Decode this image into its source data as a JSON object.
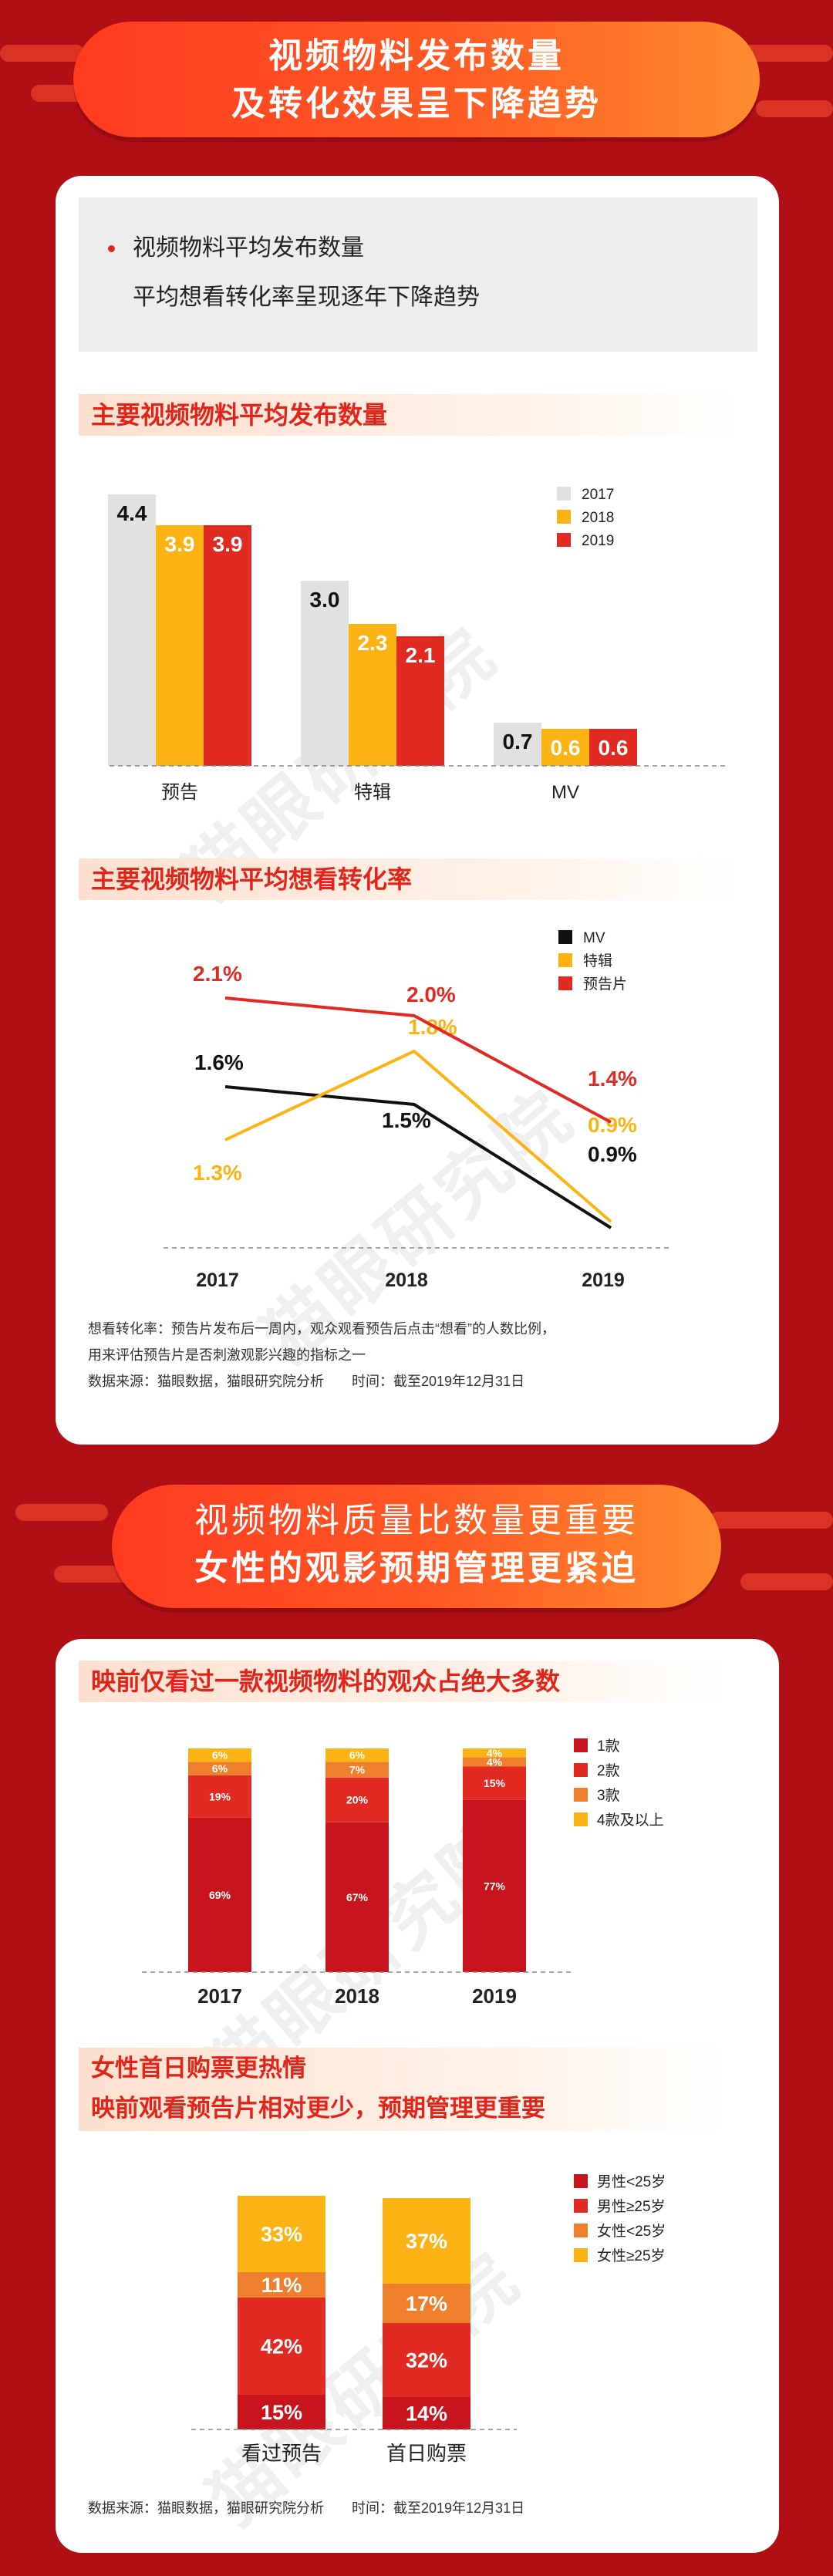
{
  "banner1": {
    "line1": "视频物料发布数量",
    "line2": "及转化效果呈下降趋势"
  },
  "summary": {
    "line1": "视频物料平均发布数量",
    "line2": "平均想看转化率呈现逐年下降趋势"
  },
  "watermark": "猫眼研究院",
  "section1": "主要视频物料平均发布数量",
  "section2": "主要视频物料平均想看转化率",
  "note1": {
    "line1": "想看转化率：预告片发布后一周内，观众观看预告后点击“想看”的人数比例，",
    "line2": "用来评估预告片是否刺激观影兴趣的指标之一",
    "line3": "数据来源：猫眼数据，猫眼研究院分析　　时间：截至2019年12月31日"
  },
  "banner2": {
    "line1": "视频物料质量比数量更重要",
    "line2": "女性的观影预期管理更紧迫"
  },
  "section3": "映前仅看过一款视频物料的观众占绝大多数",
  "section4": {
    "line1": "女性首日购票更热情",
    "line2": "映前观看预告片相对更少，预期管理更重要"
  },
  "note2": "数据来源：猫眼数据，猫眼研究院分析　　时间：截至2019年12月31日",
  "colors": {
    "bg": "#b00f16",
    "grey": "#e1e1e1",
    "yellow": "#fcb415",
    "red": "#e02a22",
    "darkred": "#c8151d",
    "orange": "#ee7f2d",
    "black": "#111111"
  },
  "chart_data": [
    {
      "type": "bar",
      "categories": [
        "预告",
        "特辑",
        "MV"
      ],
      "series": [
        {
          "name": "2017",
          "values": [
            4.4,
            3.0,
            0.7
          ]
        },
        {
          "name": "2018",
          "values": [
            3.9,
            2.3,
            0.6
          ]
        },
        {
          "name": "2019",
          "values": [
            3.9,
            2.1,
            0.6
          ]
        }
      ],
      "value_labels": [
        [
          "4.4",
          "3.0",
          "0.7"
        ],
        [
          "3.9",
          "2.3",
          "0.6"
        ],
        [
          "3.9",
          "2.1",
          "0.6"
        ]
      ],
      "legend_position": "top-right"
    },
    {
      "type": "line",
      "x": [
        "2017",
        "2018",
        "2019"
      ],
      "series": [
        {
          "name": "MV",
          "values": [
            1.6,
            1.5,
            0.9
          ],
          "labels": [
            "1.6%",
            "1.5%",
            "0.9%"
          ]
        },
        {
          "name": "特辑",
          "values": [
            1.3,
            1.8,
            0.9
          ],
          "labels": [
            "1.3%",
            "1.8%",
            "0.9%"
          ]
        },
        {
          "name": "预告片",
          "values": [
            2.1,
            2.0,
            1.4
          ],
          "labels": [
            "2.1%",
            "2.0%",
            "1.4%"
          ]
        }
      ],
      "legend_position": "top-right"
    },
    {
      "type": "bar",
      "stacked": true,
      "categories": [
        "2017",
        "2018",
        "2019"
      ],
      "series": [
        {
          "name": "1款",
          "values": [
            69,
            67,
            77
          ],
          "labels": [
            "69%",
            "67%",
            "77%"
          ]
        },
        {
          "name": "2款",
          "values": [
            19,
            20,
            15
          ],
          "labels": [
            "19%",
            "20%",
            "15%"
          ]
        },
        {
          "name": "3款",
          "values": [
            6,
            7,
            4
          ],
          "labels": [
            "6%",
            "7%",
            "4%"
          ]
        },
        {
          "name": "4款及以上",
          "values": [
            6,
            6,
            4
          ],
          "labels": [
            "6%",
            "6%",
            "4%"
          ]
        }
      ],
      "legend_position": "top-right"
    },
    {
      "type": "bar",
      "stacked": true,
      "categories": [
        "看过预告",
        "首日购票"
      ],
      "series": [
        {
          "name": "男性<25岁",
          "values": [
            15,
            14
          ],
          "labels": [
            "15%",
            "14%"
          ]
        },
        {
          "name": "男性≥25岁",
          "values": [
            42,
            32
          ],
          "labels": [
            "42%",
            "32%"
          ]
        },
        {
          "name": "女性<25岁",
          "values": [
            11,
            17
          ],
          "labels": [
            "11%",
            "17%"
          ]
        },
        {
          "name": "女性≥25岁",
          "values": [
            33,
            37
          ],
          "labels": [
            "33%",
            "37%"
          ]
        }
      ],
      "legend_position": "top-right"
    }
  ]
}
